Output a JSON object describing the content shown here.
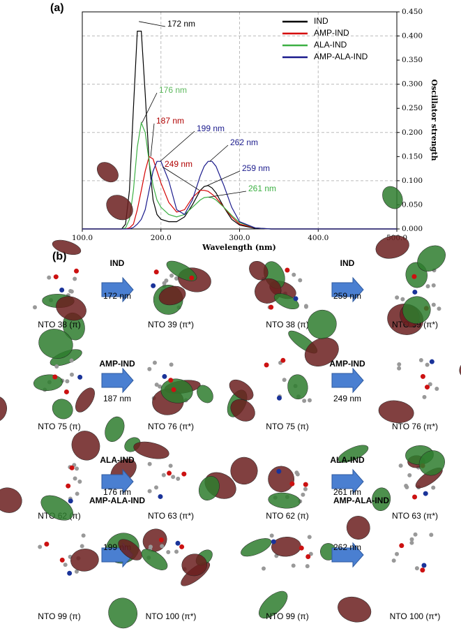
{
  "chart_data": {
    "type": "line",
    "panel_label": "(a)",
    "x_label": "Wavelength (nm)",
    "y2_label": "Oscillator strength",
    "x": [
      100,
      150,
      155,
      160,
      165,
      170,
      175,
      180,
      185,
      190,
      195,
      200,
      210,
      220,
      230,
      240,
      250,
      255,
      260,
      265,
      270,
      280,
      290,
      300,
      320,
      340,
      400,
      500
    ],
    "series": [
      {
        "name": "IND",
        "color": "#000000",
        "axis": "y2",
        "values": [
          0,
          0,
          0.01,
          0.08,
          0.25,
          0.41,
          0.41,
          0.28,
          0.14,
          0.06,
          0.03,
          0.02,
          0.015,
          0.015,
          0.025,
          0.05,
          0.08,
          0.088,
          0.09,
          0.085,
          0.075,
          0.045,
          0.02,
          0.008,
          0.001,
          0,
          0,
          0
        ]
      },
      {
        "name": "AMP-IND",
        "color": "#d40000",
        "axis": "y2",
        "values": [
          0,
          0,
          0,
          0.002,
          0.01,
          0.04,
          0.08,
          0.12,
          0.15,
          0.145,
          0.12,
          0.095,
          0.055,
          0.035,
          0.04,
          0.065,
          0.08,
          0.08,
          0.078,
          0.072,
          0.065,
          0.045,
          0.025,
          0.01,
          0.002,
          0,
          0,
          0
        ]
      },
      {
        "name": "ALA-IND",
        "color": "#3cb043",
        "axis": "y2",
        "values": [
          0,
          0,
          0.002,
          0.02,
          0.08,
          0.17,
          0.22,
          0.2,
          0.14,
          0.09,
          0.06,
          0.045,
          0.03,
          0.025,
          0.03,
          0.045,
          0.06,
          0.065,
          0.066,
          0.065,
          0.06,
          0.045,
          0.028,
          0.013,
          0.002,
          0,
          0,
          0
        ]
      },
      {
        "name": "AMP-ALA-IND",
        "color": "#1a1a8c",
        "axis": "y2",
        "values": [
          0,
          0,
          0,
          0,
          0.003,
          0.01,
          0.02,
          0.04,
          0.08,
          0.12,
          0.14,
          0.14,
          0.1,
          0.04,
          0.03,
          0.06,
          0.11,
          0.13,
          0.14,
          0.14,
          0.13,
          0.09,
          0.045,
          0.015,
          0.002,
          0,
          0,
          0
        ]
      }
    ],
    "xlim": [
      100,
      500
    ],
    "xticks": [
      {
        "value": 100,
        "label": "100.0"
      },
      {
        "value": 200,
        "label": "200.0"
      },
      {
        "value": 300,
        "label": "300.0"
      },
      {
        "value": 400,
        "label": "400.0"
      },
      {
        "value": 500,
        "label": "500.0"
      }
    ],
    "y2lim": [
      0,
      0.45
    ],
    "y2ticks": [
      {
        "value": 0,
        "label": "0.000"
      },
      {
        "value": 0.05,
        "label": "0.050"
      },
      {
        "value": 0.1,
        "label": "0.100"
      },
      {
        "value": 0.15,
        "label": "0.150"
      },
      {
        "value": 0.2,
        "label": "0.200"
      },
      {
        "value": 0.25,
        "label": "0.250"
      },
      {
        "value": 0.3,
        "label": "0.300"
      },
      {
        "value": 0.35,
        "label": "0.350"
      },
      {
        "value": 0.4,
        "label": "0.400"
      },
      {
        "value": 0.45,
        "label": "0.450"
      }
    ],
    "grid": true,
    "legend": "upper right",
    "annotations": [
      {
        "text": "172 nm",
        "color": "#000000",
        "x": 172,
        "y": 0.43
      },
      {
        "text": "176 nm",
        "color": "#5cb85c",
        "x": 176,
        "y": 0.22
      },
      {
        "text": "187 nm",
        "color": "#b00000",
        "x": 187,
        "y": 0.15
      },
      {
        "text": "199 nm",
        "color": "#1a1a8c",
        "x": 199,
        "y": 0.14
      },
      {
        "text": "249 nm",
        "color": "#b00000",
        "x": 249,
        "y": 0.08
      },
      {
        "text": "262 nm",
        "color": "#1a1a8c",
        "x": 262,
        "y": 0.14
      },
      {
        "text": "259 nm",
        "color": "#1a1a8c",
        "x": 259,
        "y": 0.09
      },
      {
        "text": "261 nm",
        "color": "#3cb043",
        "x": 261,
        "y": 0.066
      }
    ]
  },
  "panel_b": {
    "label": "(b)",
    "rows": [
      [
        {
          "molecule": "IND",
          "wavelength": "172 nm",
          "left": "NTO 38 (π)",
          "right": "NTO 39 (π*)"
        },
        {
          "molecule": "IND",
          "wavelength": "259 nm",
          "left": "NTO 38 (π)",
          "right": "NTO 39 (π*)"
        }
      ],
      [
        {
          "molecule": "AMP-IND",
          "wavelength": "187 nm",
          "left": "NTO 75 (π)",
          "right": "NTO 76 (π*)"
        },
        {
          "molecule": "AMP-IND",
          "wavelength": "249 nm",
          "left": "NTO 75 (π)",
          "right": "NTO 76 (π*)"
        }
      ],
      [
        {
          "molecule": "ALA-IND",
          "wavelength": "176 nm",
          "left": "NTO 62 (π)",
          "right": "NTO 63 (π*)"
        },
        {
          "molecule": "ALA-IND",
          "wavelength": "261 nm",
          "left": "NTO 62 (π)",
          "right": "NTO 63 (π*)"
        }
      ],
      [
        {
          "molecule": "AMP-ALA-IND",
          "wavelength": "199 nm",
          "left": "NTO 99 (π)",
          "right": "NTO 100 (π*)"
        },
        {
          "molecule": "AMP-ALA-IND",
          "wavelength": "262 nm",
          "left": "NTO 99 (π)",
          "right": "NTO 100 (π*)"
        }
      ]
    ]
  }
}
